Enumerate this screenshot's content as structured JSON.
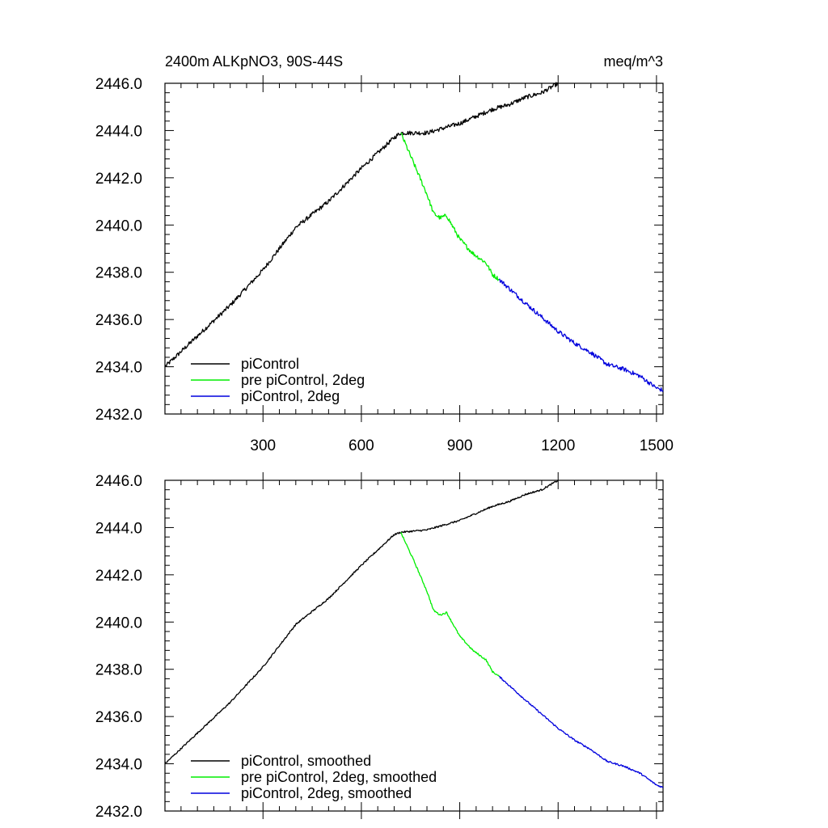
{
  "figure": {
    "title_left": "2400m ALKpNO3, 90S-44S",
    "title_right": "meq/m^3"
  },
  "colors": {
    "piControl": "#000000",
    "pre_piControl_2deg": "#00ee00",
    "piControl_2deg": "#0000dd"
  },
  "chart_data": [
    {
      "type": "line",
      "title": "2400m ALKpNO3, 90S-44S",
      "units": "meq/m^3",
      "xlim": [
        1,
        1520
      ],
      "ylim": [
        2432.0,
        2446.0
      ],
      "xticks": [
        300,
        600,
        900,
        1200,
        1500
      ],
      "yticks": [
        "2432.0",
        "2434.0",
        "2436.0",
        "2438.0",
        "2440.0",
        "2442.0",
        "2444.0",
        "2446.0"
      ],
      "legend_position": "bottom-left",
      "series": [
        {
          "name": "piControl",
          "color": "#000000",
          "x": [
            1,
            100,
            200,
            300,
            400,
            500,
            600,
            700,
            720,
            800,
            900,
            1000,
            1050,
            1100,
            1150,
            1200
          ],
          "y": [
            2434.0,
            2435.3,
            2436.6,
            2438.1,
            2439.9,
            2441.0,
            2442.4,
            2443.7,
            2443.9,
            2443.9,
            2444.3,
            2444.9,
            2445.1,
            2445.4,
            2445.6,
            2446.0
          ]
        },
        {
          "name": "pre piControl, 2deg",
          "color": "#00ee00",
          "x": [
            720,
            760,
            800,
            820,
            840,
            860,
            880,
            900,
            940,
            980,
            1000,
            1020
          ],
          "y": [
            2443.9,
            2442.6,
            2441.3,
            2440.5,
            2440.3,
            2440.4,
            2439.9,
            2439.4,
            2438.8,
            2438.4,
            2437.9,
            2437.7
          ]
        },
        {
          "name": "piControl, 2deg",
          "color": "#0000dd",
          "x": [
            1020,
            1060,
            1100,
            1150,
            1200,
            1250,
            1300,
            1350,
            1400,
            1450,
            1500,
            1520
          ],
          "y": [
            2437.7,
            2437.2,
            2436.7,
            2436.1,
            2435.5,
            2435.0,
            2434.6,
            2434.1,
            2433.9,
            2433.6,
            2433.1,
            2433.0
          ]
        }
      ]
    },
    {
      "type": "line",
      "xlim": [
        1,
        1520
      ],
      "ylim": [
        2432.0,
        2446.0
      ],
      "xticks": [
        300,
        600,
        900,
        1200,
        1500
      ],
      "yticks": [
        "2432.0",
        "2434.0",
        "2436.0",
        "2438.0",
        "2440.0",
        "2442.0",
        "2444.0",
        "2446.0"
      ],
      "legend_position": "bottom-left",
      "series": [
        {
          "name": "piControl, smoothed",
          "color": "#000000",
          "x": [
            1,
            100,
            200,
            300,
            400,
            500,
            600,
            700,
            720,
            800,
            900,
            1000,
            1050,
            1100,
            1150,
            1200
          ],
          "y": [
            2434.0,
            2435.3,
            2436.6,
            2438.1,
            2439.9,
            2441.0,
            2442.4,
            2443.7,
            2443.8,
            2443.9,
            2444.3,
            2444.9,
            2445.1,
            2445.4,
            2445.6,
            2446.0
          ]
        },
        {
          "name": "pre piControl, 2deg, smoothed",
          "color": "#00ee00",
          "x": [
            720,
            760,
            800,
            820,
            840,
            860,
            880,
            900,
            940,
            980,
            1000,
            1020
          ],
          "y": [
            2443.8,
            2442.6,
            2441.3,
            2440.5,
            2440.3,
            2440.4,
            2439.9,
            2439.4,
            2438.8,
            2438.4,
            2437.9,
            2437.7
          ]
        },
        {
          "name": "piControl, 2deg, smoothed",
          "color": "#0000dd",
          "x": [
            1020,
            1060,
            1100,
            1150,
            1200,
            1250,
            1300,
            1350,
            1400,
            1450,
            1500,
            1520
          ],
          "y": [
            2437.7,
            2437.2,
            2436.7,
            2436.1,
            2435.5,
            2435.0,
            2434.6,
            2434.1,
            2433.9,
            2433.6,
            2433.1,
            2433.0
          ]
        }
      ]
    }
  ]
}
